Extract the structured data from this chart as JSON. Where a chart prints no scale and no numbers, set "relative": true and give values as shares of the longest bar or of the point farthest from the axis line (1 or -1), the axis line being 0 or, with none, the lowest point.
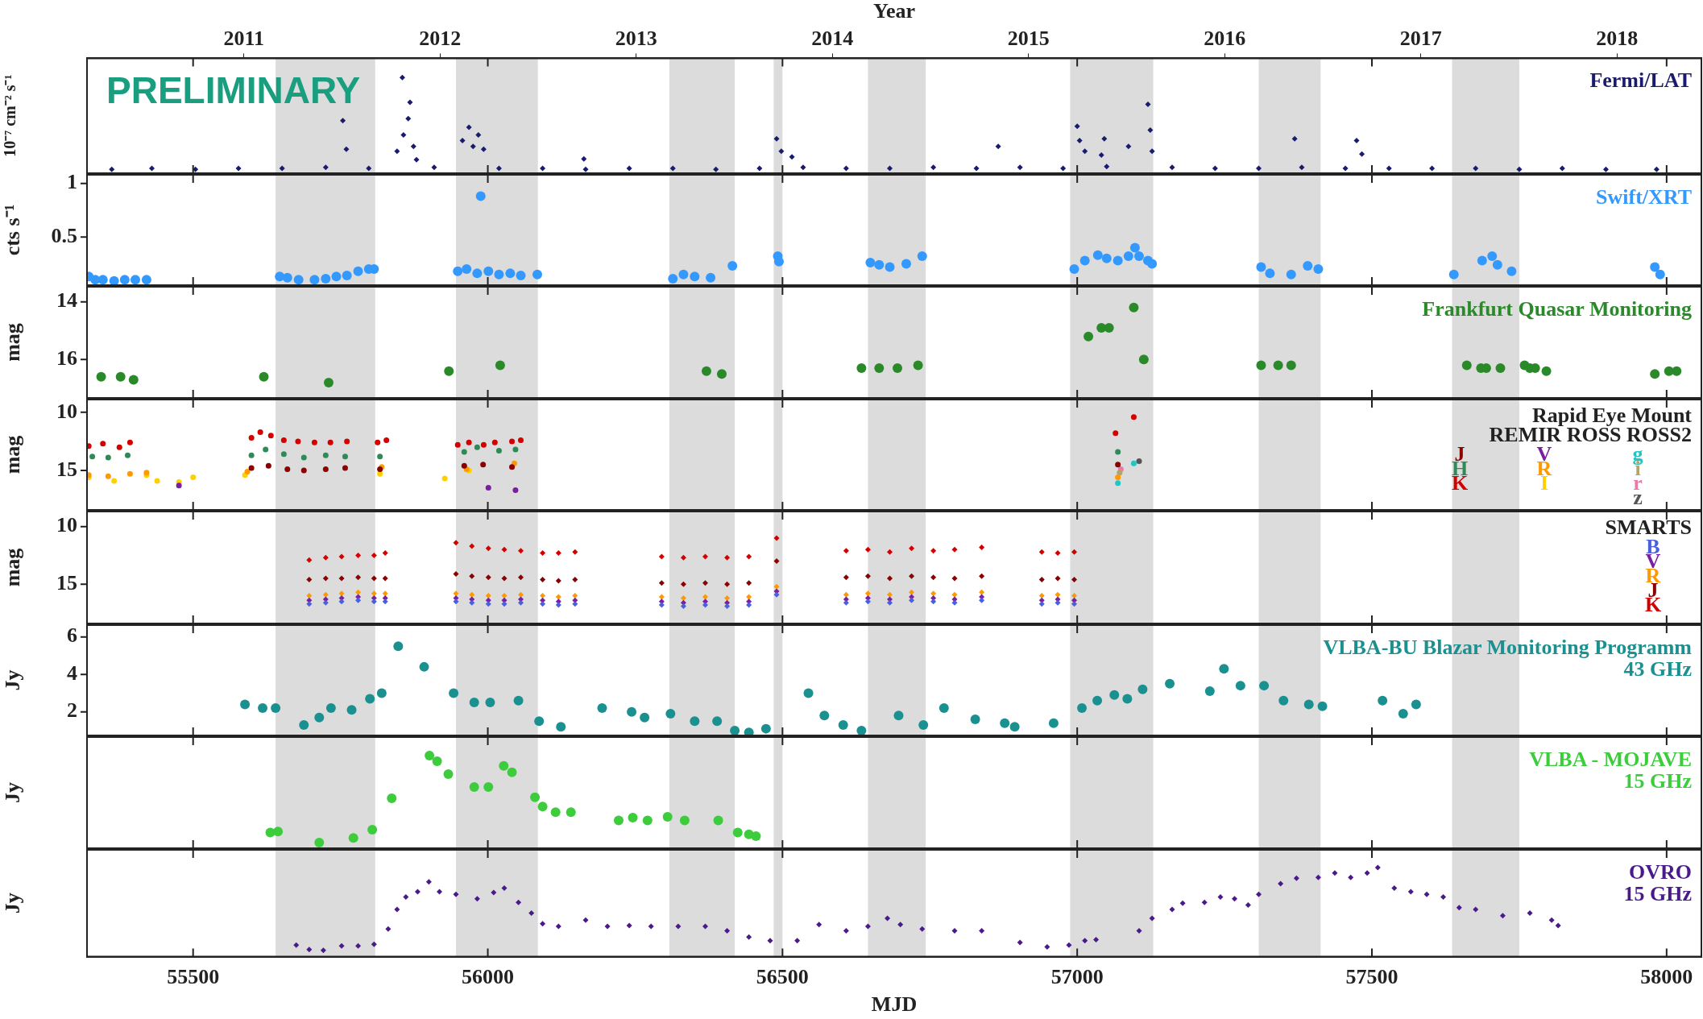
{
  "chart_data": [
    {
      "type": "scatter",
      "relative": true,
      "ylabel": "10⁻⁷ cm⁻² s⁻¹",
      "x2label": "Year",
      "x2lim": [
        2010.2,
        2018.43
      ],
      "x2ticks": [
        2011,
        2012,
        2013,
        2014,
        2015,
        2016,
        2017,
        2018
      ],
      "xlim": [
        55320,
        58059
      ],
      "xticks": [
        55500,
        56000,
        56500,
        57000,
        57500,
        58000
      ],
      "tick_labels": false,
      "legend": "top right",
      "marker": "diamond",
      "annotations": [
        "PRELIMINARY"
      ],
      "bands": [
        {
          "axis": "x",
          "from": 55640,
          "to": 55809,
          "color": "#dcdcdc"
        },
        {
          "axis": "x",
          "from": 55946,
          "to": 56085,
          "color": "#dcdcdc"
        },
        {
          "axis": "x",
          "from": 56308,
          "to": 56419,
          "color": "#dcdcdc"
        },
        {
          "axis": "x",
          "from": 56485,
          "to": 56500,
          "color": "#dcdcdc"
        },
        {
          "axis": "x",
          "from": 56645,
          "to": 56743,
          "color": "#dcdcdc"
        },
        {
          "axis": "x",
          "from": 56988,
          "to": 57129,
          "color": "#dcdcdc"
        },
        {
          "axis": "x",
          "from": 57308,
          "to": 57413,
          "color": "#dcdcdc"
        },
        {
          "axis": "x",
          "from": 57636,
          "to": 57750,
          "color": "#dcdcdc"
        }
      ],
      "series": [
        {
          "name": "Fermi/LAT",
          "color": "#1a1a6e",
          "x": [
            55362,
            55430,
            55504,
            55577,
            55651,
            55725,
            55798,
            55909,
            56019,
            56093,
            56166,
            56240,
            56314,
            56387,
            56461,
            56535,
            56608,
            56682,
            56756,
            56829,
            56903,
            56976,
            57050,
            57161,
            57234,
            57308,
            57381,
            57455,
            57529,
            57602,
            57676,
            57750,
            57823,
            57897,
            57983,
            55754,
            55760,
            55846,
            55855,
            55857,
            55865,
            55868,
            55874,
            55879,
            55957,
            55968,
            55975,
            55984,
            55993,
            56163,
            56490,
            56498,
            56516,
            56866,
            57000,
            57004,
            57013,
            57041,
            57046,
            57087,
            57120,
            57124,
            57127,
            57369,
            57474,
            57483
          ],
          "values": [
            0.04,
            0.05,
            0.04,
            0.05,
            0.05,
            0.06,
            0.05,
            0.06,
            0.05,
            0.05,
            0.04,
            0.05,
            0.05,
            0.04,
            0.05,
            0.06,
            0.05,
            0.05,
            0.06,
            0.05,
            0.06,
            0.05,
            0.07,
            0.06,
            0.05,
            0.05,
            0.06,
            0.05,
            0.05,
            0.05,
            0.05,
            0.04,
            0.05,
            0.04,
            0.04,
            0.55,
            0.25,
            0.23,
            1,
            0.4,
            0.57,
            0.74,
            0.28,
            0.14,
            0.34,
            0.48,
            0.28,
            0.4,
            0.25,
            0.15,
            0.36,
            0.23,
            0.17,
            0.28,
            0.49,
            0.34,
            0.23,
            0.19,
            0.36,
            0.28,
            0.72,
            0.45,
            0.23,
            0.36,
            0.34,
            0.2
          ]
        }
      ]
    },
    {
      "type": "scatter",
      "ylabel": "cts s⁻¹",
      "ylim": [
        0.05,
        1.08
      ],
      "yticks": [
        0.5,
        1
      ],
      "xlim": [
        55320,
        58059
      ],
      "xticks": [
        55500,
        56000,
        56500,
        57000,
        57500,
        58000
      ],
      "tick_labels": "y",
      "legend": "top right",
      "marker": "circle",
      "bands": [
        {
          "axis": "x",
          "from": 55640,
          "to": 55809,
          "color": "#dcdcdc"
        },
        {
          "axis": "x",
          "from": 55946,
          "to": 56085,
          "color": "#dcdcdc"
        },
        {
          "axis": "x",
          "from": 56308,
          "to": 56419,
          "color": "#dcdcdc"
        },
        {
          "axis": "x",
          "from": 56485,
          "to": 56500,
          "color": "#dcdcdc"
        },
        {
          "axis": "x",
          "from": 56645,
          "to": 56743,
          "color": "#dcdcdc"
        },
        {
          "axis": "x",
          "from": 56988,
          "to": 57129,
          "color": "#dcdcdc"
        },
        {
          "axis": "x",
          "from": 57308,
          "to": 57413,
          "color": "#dcdcdc"
        },
        {
          "axis": "x",
          "from": 57636,
          "to": 57750,
          "color": "#dcdcdc"
        }
      ],
      "series": [
        {
          "name": "Swift/XRT",
          "color": "#3399ff",
          "x": [
            55323,
            55334,
            55347,
            55366,
            55384,
            55402,
            55421,
            55647,
            55660,
            55679,
            55706,
            55725,
            55743,
            55761,
            55780,
            55798,
            55807,
            55949,
            55964,
            55982,
            55988,
            56001,
            56019,
            56038,
            56056,
            56084,
            56314,
            56332,
            56351,
            56378,
            56415,
            56492,
            56494,
            56649,
            56664,
            56682,
            56710,
            56737,
            56995,
            57013,
            57035,
            57050,
            57069,
            57087,
            57098,
            57105,
            57120,
            57127,
            57312,
            57327,
            57363,
            57391,
            57409,
            57639,
            57687,
            57704,
            57713,
            57737,
            57980,
            57989
          ],
          "values": [
            0.13,
            0.1,
            0.1,
            0.09,
            0.1,
            0.1,
            0.1,
            0.13,
            0.12,
            0.1,
            0.1,
            0.11,
            0.13,
            0.14,
            0.18,
            0.2,
            0.2,
            0.18,
            0.2,
            0.16,
            0.88,
            0.18,
            0.15,
            0.16,
            0.14,
            0.15,
            0.11,
            0.15,
            0.13,
            0.12,
            0.23,
            0.32,
            0.27,
            0.26,
            0.24,
            0.22,
            0.25,
            0.32,
            0.2,
            0.28,
            0.33,
            0.3,
            0.28,
            0.32,
            0.4,
            0.32,
            0.28,
            0.25,
            0.22,
            0.16,
            0.15,
            0.23,
            0.2,
            0.15,
            0.28,
            0.32,
            0.24,
            0.18,
            0.22,
            0.15
          ]
        }
      ]
    },
    {
      "type": "scatter",
      "ylabel": "mag",
      "ylim": [
        17.33,
        13.48
      ],
      "yticks": [
        14,
        16
      ],
      "xlim": [
        55320,
        58059
      ],
      "xticks": [
        55500,
        56000,
        56500,
        57000,
        57500,
        58000
      ],
      "tick_labels": "y",
      "legend": "top right",
      "marker": "circle",
      "bands": [
        {
          "axis": "x",
          "from": 55640,
          "to": 55809,
          "color": "#dcdcdc"
        },
        {
          "axis": "x",
          "from": 55946,
          "to": 56085,
          "color": "#dcdcdc"
        },
        {
          "axis": "x",
          "from": 56308,
          "to": 56419,
          "color": "#dcdcdc"
        },
        {
          "axis": "x",
          "from": 56485,
          "to": 56500,
          "color": "#dcdcdc"
        },
        {
          "axis": "x",
          "from": 56645,
          "to": 56743,
          "color": "#dcdcdc"
        },
        {
          "axis": "x",
          "from": 56988,
          "to": 57129,
          "color": "#dcdcdc"
        },
        {
          "axis": "x",
          "from": 57308,
          "to": 57413,
          "color": "#dcdcdc"
        },
        {
          "axis": "x",
          "from": 57636,
          "to": 57750,
          "color": "#dcdcdc"
        }
      ],
      "series": [
        {
          "name": "Frankfurt Quasar Monitoring",
          "color": "#2a8a2a",
          "x": [
            55344,
            55377,
            55399,
            55620,
            55730,
            55934,
            56021,
            56371,
            56397,
            56634,
            56664,
            56695,
            56730,
            57019,
            57041,
            57054,
            57096,
            57113,
            57312,
            57341,
            57363,
            57661,
            57685,
            57694,
            57718,
            57759,
            57768,
            57777,
            57796,
            57980,
            58004,
            58017
          ],
          "values": [
            16.6,
            16.6,
            16.7,
            16.6,
            16.8,
            16.4,
            16.2,
            16.4,
            16.5,
            16.3,
            16.3,
            16.3,
            16.2,
            15.2,
            14.9,
            14.9,
            14.2,
            16.0,
            16.2,
            16.2,
            16.2,
            16.2,
            16.3,
            16.3,
            16.3,
            16.2,
            16.3,
            16.3,
            16.4,
            16.5,
            16.4,
            16.4
          ]
        }
      ]
    },
    {
      "type": "scatter",
      "ylabel": "mag",
      "ylim": [
        18.4,
        8.9
      ],
      "yticks": [
        10,
        15
      ],
      "xlim": [
        55320,
        58059
      ],
      "xticks": [
        55500,
        56000,
        56500,
        57000,
        57500,
        58000
      ],
      "tick_labels": "y",
      "legend": "right",
      "marker": "circle",
      "annotations": [
        "Rapid Eye Mount",
        "REMIR ROSS ROSS2"
      ],
      "bands": [
        {
          "axis": "x",
          "from": 55640,
          "to": 55809,
          "color": "#dcdcdc"
        },
        {
          "axis": "x",
          "from": 55946,
          "to": 56085,
          "color": "#dcdcdc"
        },
        {
          "axis": "x",
          "from": 56308,
          "to": 56419,
          "color": "#dcdcdc"
        },
        {
          "axis": "x",
          "from": 56485,
          "to": 56500,
          "color": "#dcdcdc"
        },
        {
          "axis": "x",
          "from": 56645,
          "to": 56743,
          "color": "#dcdcdc"
        },
        {
          "axis": "x",
          "from": 56988,
          "to": 57129,
          "color": "#dcdcdc"
        },
        {
          "axis": "x",
          "from": 57308,
          "to": 57413,
          "color": "#dcdcdc"
        },
        {
          "axis": "x",
          "from": 57636,
          "to": 57750,
          "color": "#dcdcdc"
        }
      ],
      "series": [
        {
          "name": "J",
          "color": "#8b0000",
          "x": [
            55599,
            55628,
            55660,
            55688,
            55725,
            55758,
            55817,
            55960,
            55992,
            56041,
            57069
          ],
          "values": [
            14.8,
            14.6,
            14.9,
            15.0,
            14.9,
            14.8,
            14.9,
            14.6,
            14.5,
            14.7,
            14.5
          ]
        },
        {
          "name": "H",
          "color": "#2e8b57",
          "x": [
            55329,
            55356,
            55389,
            55599,
            55623,
            55654,
            55688,
            55725,
            55758,
            55817,
            55960,
            55982,
            56019,
            56047,
            57069
          ],
          "values": [
            13.8,
            13.9,
            13.7,
            13.7,
            13.2,
            13.6,
            13.9,
            13.7,
            13.8,
            13.8,
            13.4,
            13.0,
            13.3,
            13.2,
            13.4
          ]
        },
        {
          "name": "K",
          "color": "#d40000",
          "x": [
            55323,
            55347,
            55375,
            55393,
            55599,
            55614,
            55632,
            55654,
            55678,
            55706,
            55733,
            55761,
            55813,
            55828,
            55949,
            55968,
            55993,
            56012,
            56041,
            56056,
            57065,
            57096
          ],
          "values": [
            12.9,
            12.7,
            13.0,
            12.6,
            12.2,
            11.7,
            12.0,
            12.4,
            12.5,
            12.6,
            12.6,
            12.5,
            12.6,
            12.4,
            12.8,
            12.6,
            12.8,
            12.6,
            12.5,
            12.4,
            11.8,
            10.4
          ]
        },
        {
          "name": "V",
          "color": "#7b1fa2",
          "x": [
            55476,
            56001,
            56047
          ],
          "values": [
            16.3,
            16.5,
            16.7
          ]
        },
        {
          "name": "R",
          "color": "#ff9900",
          "x": [
            55323,
            55356,
            55393,
            55421,
            55592,
            55820,
            55964,
            56045,
            57069
          ],
          "values": [
            15.4,
            15.5,
            15.3,
            15.2,
            15.1,
            14.7,
            14.9,
            14.4,
            15.6
          ]
        },
        {
          "name": "I",
          "color": "#ffd000",
          "x": [
            55323,
            55366,
            55421,
            55439,
            55476,
            55500,
            55588,
            55817,
            55927,
            55968
          ],
          "values": [
            15.6,
            15.9,
            15.4,
            15.9,
            16.0,
            15.6,
            15.4,
            15.3,
            15.7,
            15.0
          ]
        },
        {
          "name": "g",
          "color": "#22c4c4",
          "x": [
            57069,
            57096
          ],
          "values": [
            16.1,
            14.4
          ]
        },
        {
          "name": "i",
          "color": "#b5a46a",
          "x": [
            57072
          ],
          "values": [
            15.2
          ]
        },
        {
          "name": "r",
          "color": "#e87aa8",
          "x": [
            57074
          ],
          "values": [
            14.9
          ]
        },
        {
          "name": "z",
          "color": "#555555",
          "x": [
            57105
          ],
          "values": [
            14.2
          ]
        }
      ]
    },
    {
      "type": "scatter",
      "ylabel": "mag",
      "ylim": [
        18.4,
        8.7
      ],
      "yticks": [
        10,
        15
      ],
      "xlim": [
        55320,
        58059
      ],
      "xticks": [
        55500,
        56000,
        56500,
        57000,
        57500,
        58000
      ],
      "tick_labels": "y",
      "legend": "right",
      "marker": "diamond",
      "annotations": [
        "SMARTS"
      ],
      "bands": [
        {
          "axis": "x",
          "from": 55640,
          "to": 55809,
          "color": "#dcdcdc"
        },
        {
          "axis": "x",
          "from": 55946,
          "to": 56085,
          "color": "#dcdcdc"
        },
        {
          "axis": "x",
          "from": 56308,
          "to": 56419,
          "color": "#dcdcdc"
        },
        {
          "axis": "x",
          "from": 56485,
          "to": 56500,
          "color": "#dcdcdc"
        },
        {
          "axis": "x",
          "from": 56645,
          "to": 56743,
          "color": "#dcdcdc"
        },
        {
          "axis": "x",
          "from": 56988,
          "to": 57129,
          "color": "#dcdcdc"
        },
        {
          "axis": "x",
          "from": 57308,
          "to": 57413,
          "color": "#dcdcdc"
        },
        {
          "axis": "x",
          "from": 57636,
          "to": 57750,
          "color": "#dcdcdc"
        }
      ],
      "x": [
        55697,
        55725,
        55752,
        55780,
        55807,
        55826,
        55946,
        55973,
        56001,
        56028,
        56056,
        56093,
        56120,
        56148,
        56295,
        56332,
        56369,
        56406,
        56443,
        56490,
        56608,
        56645,
        56682,
        56719,
        56756,
        56792,
        56838,
        56940,
        56967,
        56995
      ],
      "series": [
        {
          "name": "B",
          "color": "#4a5fe0",
          "values": [
            16.7,
            16.6,
            16.5,
            16.4,
            16.5,
            16.5,
            16.5,
            16.6,
            16.7,
            16.7,
            16.6,
            16.7,
            16.8,
            16.7,
            16.8,
            16.9,
            16.8,
            16.9,
            16.8,
            15.9,
            16.6,
            16.5,
            16.6,
            16.4,
            16.5,
            16.6,
            16.4,
            16.7,
            16.6,
            16.7
          ]
        },
        {
          "name": "V",
          "color": "#7b1fa2",
          "values": [
            16.4,
            16.3,
            16.2,
            16.1,
            16.2,
            16.2,
            16.2,
            16.3,
            16.4,
            16.4,
            16.3,
            16.4,
            16.5,
            16.4,
            16.5,
            16.6,
            16.5,
            16.6,
            16.5,
            15.6,
            16.3,
            16.2,
            16.3,
            16.1,
            16.2,
            16.3,
            16.1,
            16.4,
            16.3,
            16.4
          ]
        },
        {
          "name": "R",
          "color": "#ff9900",
          "values": [
            16.0,
            15.9,
            15.8,
            15.7,
            15.8,
            15.8,
            15.8,
            15.9,
            16.0,
            16.0,
            15.9,
            16.0,
            16.1,
            16.0,
            16.1,
            16.2,
            16.1,
            16.2,
            16.1,
            15.2,
            15.9,
            15.8,
            15.9,
            15.7,
            15.8,
            15.9,
            15.7,
            16.0,
            15.9,
            16.0
          ]
        },
        {
          "name": "J",
          "color": "#8b0000",
          "values": [
            14.6,
            14.5,
            14.5,
            14.4,
            14.5,
            14.5,
            14.1,
            14.3,
            14.4,
            14.5,
            14.4,
            14.6,
            14.7,
            14.6,
            14.9,
            15.0,
            14.9,
            15.0,
            14.9,
            13.0,
            14.4,
            14.3,
            14.5,
            14.3,
            14.4,
            14.5,
            14.3,
            14.6,
            14.5,
            14.6
          ]
        },
        {
          "name": "K",
          "color": "#d40000",
          "values": [
            12.9,
            12.7,
            12.6,
            12.5,
            12.5,
            12.3,
            11.4,
            11.7,
            11.9,
            12.0,
            12.1,
            12.3,
            12.3,
            12.2,
            12.6,
            12.7,
            12.6,
            12.7,
            12.6,
            11.0,
            12.1,
            12.0,
            12.2,
            11.9,
            12.1,
            12.0,
            11.8,
            12.2,
            12.3,
            12.2
          ]
        }
      ]
    },
    {
      "type": "scatter",
      "ylabel": "Jy",
      "ylim": [
        0.74,
        6.63
      ],
      "yticks": [
        2,
        4,
        6
      ],
      "xlim": [
        55320,
        58059
      ],
      "xticks": [
        55500,
        56000,
        56500,
        57000,
        57500,
        58000
      ],
      "tick_labels": "y",
      "legend": "top right",
      "marker": "circle",
      "bands": [
        {
          "axis": "x",
          "from": 55640,
          "to": 55809,
          "color": "#dcdcdc"
        },
        {
          "axis": "x",
          "from": 55946,
          "to": 56085,
          "color": "#dcdcdc"
        },
        {
          "axis": "x",
          "from": 56308,
          "to": 56419,
          "color": "#dcdcdc"
        },
        {
          "axis": "x",
          "from": 56485,
          "to": 56500,
          "color": "#dcdcdc"
        },
        {
          "axis": "x",
          "from": 56645,
          "to": 56743,
          "color": "#dcdcdc"
        },
        {
          "axis": "x",
          "from": 56988,
          "to": 57129,
          "color": "#dcdcdc"
        },
        {
          "axis": "x",
          "from": 57308,
          "to": 57413,
          "color": "#dcdcdc"
        },
        {
          "axis": "x",
          "from": 57636,
          "to": 57750,
          "color": "#dcdcdc"
        }
      ],
      "series": [
        {
          "name": "VLBA-BU Blazar Monitoring Programm\n43 GHz",
          "color": "#1a9090",
          "x": [
            55588,
            55618,
            55640,
            55688,
            55714,
            55734,
            55769,
            55800,
            55820,
            55848,
            55892,
            55942,
            55977,
            56004,
            56052,
            56087,
            56124,
            56194,
            56244,
            56266,
            56310,
            56351,
            56389,
            56419,
            56443,
            56472,
            56544,
            56571,
            56603,
            56634,
            56697,
            56739,
            56774,
            56827,
            56877,
            56894,
            56960,
            57008,
            57034,
            57063,
            57085,
            57111,
            57157,
            57225,
            57249,
            57277,
            57317,
            57350,
            57393,
            57416,
            57518,
            57553,
            57575
          ],
          "values": [
            2.4,
            2.2,
            2.2,
            1.3,
            1.7,
            2.2,
            2.1,
            2.7,
            3.0,
            5.5,
            4.4,
            3.0,
            2.5,
            2.5,
            2.6,
            1.5,
            1.2,
            2.2,
            2.0,
            1.7,
            1.9,
            1.5,
            1.5,
            1.0,
            0.9,
            1.1,
            3.0,
            1.8,
            1.3,
            1.0,
            1.8,
            1.3,
            2.2,
            1.6,
            1.4,
            1.2,
            1.4,
            2.2,
            2.6,
            2.9,
            2.7,
            3.2,
            3.5,
            3.1,
            4.3,
            3.4,
            3.4,
            2.6,
            2.4,
            2.3,
            2.6,
            1.9,
            2.4
          ]
        }
      ]
    },
    {
      "type": "scatter",
      "relative": true,
      "ylabel": "Jy",
      "xlim": [
        55320,
        58059
      ],
      "xticks": [
        55500,
        56000,
        56500,
        57000,
        57500,
        58000
      ],
      "tick_labels": false,
      "legend": "top right",
      "marker": "circle",
      "bands": [
        {
          "axis": "x",
          "from": 55640,
          "to": 55809,
          "color": "#dcdcdc"
        },
        {
          "axis": "x",
          "from": 55946,
          "to": 56085,
          "color": "#dcdcdc"
        },
        {
          "axis": "x",
          "from": 56308,
          "to": 56419,
          "color": "#dcdcdc"
        },
        {
          "axis": "x",
          "from": 56485,
          "to": 56500,
          "color": "#dcdcdc"
        },
        {
          "axis": "x",
          "from": 56645,
          "to": 56743,
          "color": "#dcdcdc"
        },
        {
          "axis": "x",
          "from": 56988,
          "to": 57129,
          "color": "#dcdcdc"
        },
        {
          "axis": "x",
          "from": 57308,
          "to": 57413,
          "color": "#dcdcdc"
        },
        {
          "axis": "x",
          "from": 57636,
          "to": 57750,
          "color": "#dcdcdc"
        }
      ],
      "series": [
        {
          "name": "VLBA - MOJAVE\n15 GHz",
          "color": "#3ccc3c",
          "x": [
            55631,
            55644,
            55714,
            55772,
            55804,
            55837,
            55901,
            55914,
            55933,
            55977,
            56001,
            56027,
            56041,
            56080,
            56093,
            56115,
            56141,
            56222,
            56246,
            56271,
            56305,
            56334,
            56391,
            56424,
            56443,
            56455
          ],
          "values": [
            0.17,
            0.18,
            0.06,
            0.11,
            0.2,
            0.54,
            1,
            0.94,
            0.8,
            0.66,
            0.66,
            0.89,
            0.82,
            0.55,
            0.45,
            0.39,
            0.39,
            0.3,
            0.33,
            0.3,
            0.34,
            0.3,
            0.3,
            0.17,
            0.15,
            0.13
          ]
        }
      ]
    },
    {
      "type": "scatter",
      "relative": true,
      "ylabel": "Jy",
      "xlabel": "MJD",
      "xlim": [
        55320,
        58059
      ],
      "xticks": [
        55500,
        56000,
        56500,
        57000,
        57500,
        58000
      ],
      "tick_labels": "x",
      "legend": "top right",
      "marker": "diamond",
      "bands": [
        {
          "axis": "x",
          "from": 55640,
          "to": 55809,
          "color": "#dcdcdc"
        },
        {
          "axis": "x",
          "from": 55946,
          "to": 56085,
          "color": "#dcdcdc"
        },
        {
          "axis": "x",
          "from": 56308,
          "to": 56419,
          "color": "#dcdcdc"
        },
        {
          "axis": "x",
          "from": 56485,
          "to": 56500,
          "color": "#dcdcdc"
        },
        {
          "axis": "x",
          "from": 56645,
          "to": 56743,
          "color": "#dcdcdc"
        },
        {
          "axis": "x",
          "from": 56988,
          "to": 57129,
          "color": "#dcdcdc"
        },
        {
          "axis": "x",
          "from": 57308,
          "to": 57413,
          "color": "#dcdcdc"
        },
        {
          "axis": "x",
          "from": 57636,
          "to": 57750,
          "color": "#dcdcdc"
        }
      ],
      "series": [
        {
          "name": "OVRO\n15 GHz",
          "color": "#4b1a8a",
          "x": [
            55675,
            55697,
            55721,
            55752,
            55780,
            55807,
            55831,
            55846,
            55861,
            55881,
            55900,
            55918,
            55946,
            55982,
            56010,
            56028,
            56052,
            56074,
            56093,
            56120,
            56166,
            56203,
            56240,
            56277,
            56323,
            56369,
            56406,
            56443,
            56479,
            56525,
            56562,
            56608,
            56645,
            56678,
            56700,
            56737,
            56792,
            56838,
            56903,
            56949,
            56986,
            57013,
            57032,
            57105,
            57127,
            57161,
            57179,
            57216,
            57243,
            57267,
            57290,
            57308,
            57345,
            57372,
            57409,
            57437,
            57464,
            57492,
            57510,
            57538,
            57566,
            57593,
            57621,
            57648,
            57676,
            57722,
            57768,
            57805,
            57816
          ],
          "values": [
            0.13,
            0.08,
            0.07,
            0.12,
            0.12,
            0.14,
            0.31,
            0.53,
            0.67,
            0.73,
            0.84,
            0.73,
            0.7,
            0.65,
            0.72,
            0.77,
            0.61,
            0.49,
            0.37,
            0.34,
            0.41,
            0.34,
            0.35,
            0.34,
            0.34,
            0.34,
            0.29,
            0.22,
            0.18,
            0.18,
            0.36,
            0.29,
            0.34,
            0.43,
            0.36,
            0.31,
            0.29,
            0.29,
            0.16,
            0.11,
            0.13,
            0.18,
            0.19,
            0.29,
            0.43,
            0.53,
            0.6,
            0.61,
            0.67,
            0.65,
            0.58,
            0.7,
            0.82,
            0.88,
            0.89,
            0.94,
            0.89,
            0.94,
            1,
            0.77,
            0.73,
            0.7,
            0.67,
            0.55,
            0.53,
            0.46,
            0.49,
            0.41,
            0.35
          ]
        }
      ]
    }
  ]
}
